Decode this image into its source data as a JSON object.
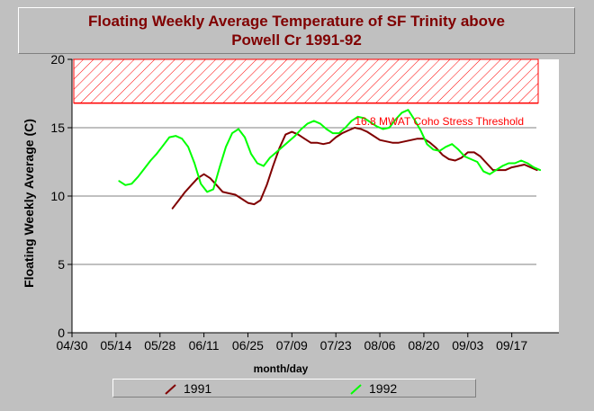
{
  "title": {
    "line1": "Floating Weekly Average Temperature of SF Trinity above",
    "line2": "Powell Cr 1991-92"
  },
  "colors": {
    "background": "#c0c0c0",
    "plot_background": "#ffffff",
    "title": "#800000",
    "series_1991": "#800000",
    "series_1992": "#00ff00",
    "threshold": "#ff0000",
    "gridline": "#808080"
  },
  "chart_data": {
    "type": "line",
    "xlabel": "month/day",
    "ylabel": "Floating Weekly Average (C)",
    "ylim": [
      0,
      20
    ],
    "y_ticks": [
      0,
      5,
      10,
      15,
      20
    ],
    "x_domain_day": [
      120,
      275
    ],
    "x_ticks": [
      {
        "label": "04/30",
        "day": 120
      },
      {
        "label": "05/14",
        "day": 134
      },
      {
        "label": "05/28",
        "day": 148
      },
      {
        "label": "06/11",
        "day": 162
      },
      {
        "label": "06/25",
        "day": 176
      },
      {
        "label": "07/09",
        "day": 190
      },
      {
        "label": "07/23",
        "day": 204
      },
      {
        "label": "08/06",
        "day": 218
      },
      {
        "label": "08/20",
        "day": 232
      },
      {
        "label": "09/03",
        "day": 246
      },
      {
        "label": "09/17",
        "day": 260
      }
    ],
    "grid": "horizontal",
    "legend_position": "bottom",
    "threshold": {
      "label": "16.8 MWAT Coho Stress Threshold",
      "y": 16.8,
      "band_top": 20
    },
    "series": [
      {
        "name": "1991",
        "x_day": [
          152,
          154,
          156,
          158,
          160,
          162,
          164,
          166,
          168,
          170,
          172,
          174,
          176,
          178,
          180,
          182,
          184,
          186,
          188,
          190,
          192,
          194,
          196,
          198,
          200,
          202,
          204,
          206,
          208,
          210,
          212,
          214,
          216,
          218,
          220,
          222,
          224,
          226,
          228,
          230,
          232,
          234,
          236,
          238,
          240,
          242,
          244,
          246,
          248,
          250,
          252,
          254,
          256,
          258,
          260,
          262,
          264,
          266,
          268
        ],
        "y": [
          9.1,
          9.7,
          10.3,
          10.8,
          11.3,
          11.6,
          11.3,
          10.8,
          10.3,
          10.2,
          10.1,
          9.8,
          9.5,
          9.4,
          9.7,
          10.8,
          12.2,
          13.5,
          14.5,
          14.7,
          14.5,
          14.2,
          13.9,
          13.9,
          13.8,
          13.9,
          14.3,
          14.6,
          14.8,
          15.0,
          14.9,
          14.7,
          14.4,
          14.1,
          14.0,
          13.9,
          13.9,
          14.0,
          14.1,
          14.2,
          14.2,
          13.9,
          13.5,
          13.0,
          12.7,
          12.6,
          12.8,
          13.2,
          13.2,
          12.9,
          12.4,
          11.9,
          11.9,
          11.9,
          12.1,
          12.2,
          12.3,
          12.1,
          11.9
        ]
      },
      {
        "name": "1992",
        "x_day": [
          135,
          137,
          139,
          141,
          143,
          145,
          147,
          149,
          151,
          153,
          155,
          157,
          159,
          161,
          163,
          165,
          167,
          169,
          171,
          173,
          175,
          177,
          179,
          181,
          183,
          185,
          187,
          189,
          191,
          193,
          195,
          197,
          199,
          201,
          203,
          205,
          207,
          209,
          211,
          213,
          215,
          217,
          219,
          221,
          223,
          225,
          227,
          229,
          231,
          233,
          235,
          237,
          239,
          241,
          243,
          245,
          247,
          249,
          251,
          253,
          255,
          257,
          259,
          261,
          263,
          265,
          267,
          269
        ],
        "y": [
          11.1,
          10.8,
          10.9,
          11.4,
          12.0,
          12.6,
          13.1,
          13.7,
          14.3,
          14.4,
          14.2,
          13.6,
          12.4,
          10.9,
          10.3,
          10.5,
          12.1,
          13.6,
          14.6,
          14.9,
          14.3,
          13.1,
          12.4,
          12.2,
          12.8,
          13.2,
          13.6,
          14.0,
          14.4,
          14.9,
          15.3,
          15.5,
          15.3,
          14.9,
          14.6,
          14.6,
          15.0,
          15.5,
          15.8,
          15.7,
          15.4,
          15.1,
          14.9,
          15.0,
          15.6,
          16.1,
          16.3,
          15.6,
          14.8,
          13.8,
          13.4,
          13.3,
          13.6,
          13.8,
          13.4,
          12.9,
          12.7,
          12.5,
          11.8,
          11.6,
          11.9,
          12.2,
          12.4,
          12.4,
          12.6,
          12.4,
          12.1,
          11.9
        ]
      }
    ]
  }
}
